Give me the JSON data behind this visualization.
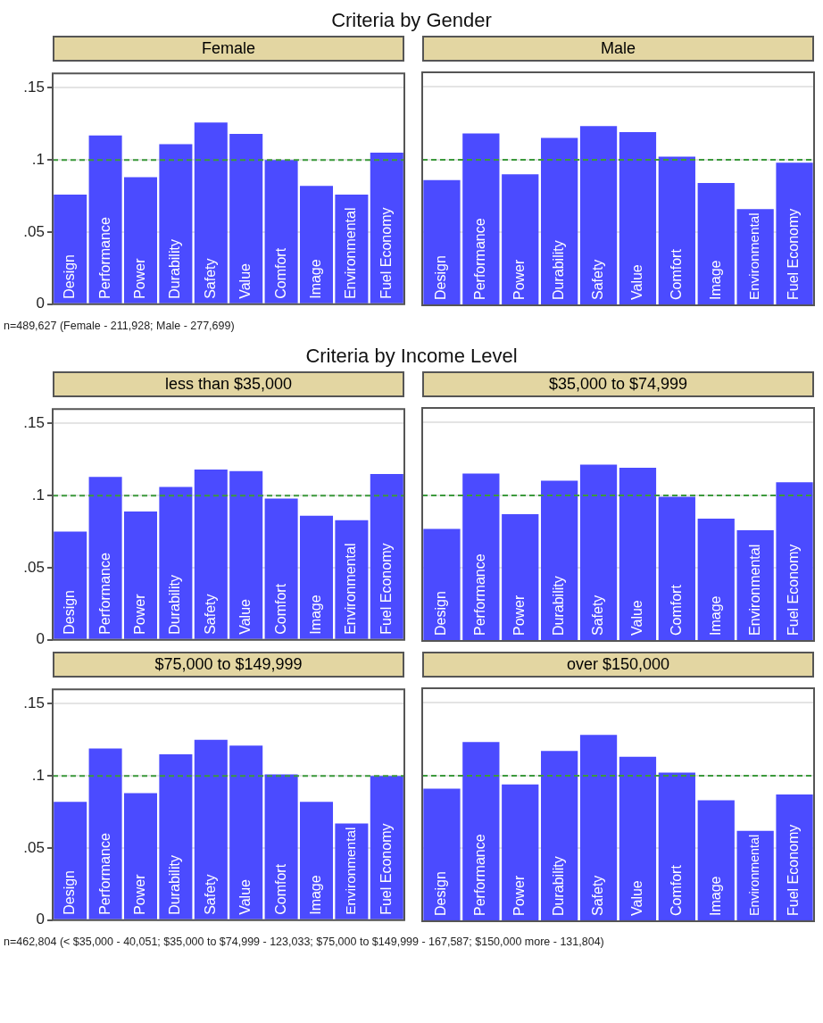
{
  "chart_data": [
    {
      "type": "bar",
      "title": "Criteria by Gender",
      "subtitle": "Female",
      "categories": [
        "Design",
        "Performance",
        "Power",
        "Durability",
        "Safety",
        "Value",
        "Comfort",
        "Image",
        "Environmental",
        "Fuel Economy"
      ],
      "values": [
        0.076,
        0.117,
        0.088,
        0.111,
        0.126,
        0.118,
        0.1,
        0.082,
        0.076,
        0.105
      ],
      "color": "#4b4bff",
      "ylim": [
        0,
        0.16
      ],
      "yticks": [
        {
          "value": 0,
          "label": "0"
        },
        {
          "value": 0.05,
          "label": ".05"
        },
        {
          "value": 0.1,
          "label": ".1"
        },
        {
          "value": 0.15,
          "label": ".15"
        }
      ],
      "grid": "y",
      "ref_lines": [
        {
          "axis": "y",
          "value": 0.1,
          "color": "#3c9a3c",
          "line_style": "dashed"
        }
      ]
    },
    {
      "type": "bar",
      "subtitle": "Male",
      "categories": [
        "Design",
        "Performance",
        "Power",
        "Durability",
        "Safety",
        "Value",
        "Comfort",
        "Image",
        "Environmental",
        "Fuel Economy"
      ],
      "values": [
        0.086,
        0.118,
        0.09,
        0.115,
        0.123,
        0.119,
        0.102,
        0.084,
        0.066,
        0.098
      ],
      "color": "#4b4bff",
      "ylim": [
        0,
        0.16
      ],
      "yticks": [
        0,
        0.05,
        0.1,
        0.15
      ],
      "grid": "y",
      "tick_labels": "x",
      "ref_lines": [
        {
          "axis": "y",
          "value": 0.1,
          "color": "#3c9a3c",
          "line_style": "dashed"
        }
      ],
      "annotations": [
        "n=489,627 (Female - 211,928; Male - 277,699)"
      ]
    },
    {
      "type": "bar",
      "title": "Criteria by Income Level",
      "subtitle": "less than $35,000",
      "categories": [
        "Design",
        "Performance",
        "Power",
        "Durability",
        "Safety",
        "Value",
        "Comfort",
        "Image",
        "Environmental",
        "Fuel Economy"
      ],
      "values": [
        0.075,
        0.113,
        0.089,
        0.106,
        0.118,
        0.117,
        0.098,
        0.086,
        0.083,
        0.115
      ],
      "color": "#4b4bff",
      "ylim": [
        0,
        0.16
      ],
      "yticks": [
        {
          "value": 0,
          "label": "0"
        },
        {
          "value": 0.05,
          "label": ".05"
        },
        {
          "value": 0.1,
          "label": ".1"
        },
        {
          "value": 0.15,
          "label": ".15"
        }
      ],
      "grid": "y",
      "ref_lines": [
        {
          "axis": "y",
          "value": 0.1,
          "color": "#3c9a3c",
          "line_style": "dashed"
        }
      ]
    },
    {
      "type": "bar",
      "subtitle": "$35,000 to $74,999",
      "categories": [
        "Design",
        "Performance",
        "Power",
        "Durability",
        "Safety",
        "Value",
        "Comfort",
        "Image",
        "Environmental",
        "Fuel Economy"
      ],
      "values": [
        0.077,
        0.115,
        0.087,
        0.11,
        0.121,
        0.119,
        0.099,
        0.084,
        0.076,
        0.109
      ],
      "color": "#4b4bff",
      "ylim": [
        0,
        0.16
      ],
      "yticks": [
        0,
        0.05,
        0.1,
        0.15
      ],
      "grid": "y",
      "tick_labels": "x",
      "ref_lines": [
        {
          "axis": "y",
          "value": 0.1,
          "color": "#3c9a3c",
          "line_style": "dashed"
        }
      ]
    },
    {
      "type": "bar",
      "subtitle": "$75,000 to $149,999",
      "categories": [
        "Design",
        "Performance",
        "Power",
        "Durability",
        "Safety",
        "Value",
        "Comfort",
        "Image",
        "Environmental",
        "Fuel Economy"
      ],
      "values": [
        0.082,
        0.119,
        0.088,
        0.115,
        0.125,
        0.121,
        0.101,
        0.082,
        0.067,
        0.1
      ],
      "color": "#4b4bff",
      "ylim": [
        0,
        0.16
      ],
      "yticks": [
        {
          "value": 0,
          "label": "0"
        },
        {
          "value": 0.05,
          "label": ".05"
        },
        {
          "value": 0.1,
          "label": ".1"
        },
        {
          "value": 0.15,
          "label": ".15"
        }
      ],
      "grid": "y",
      "ref_lines": [
        {
          "axis": "y",
          "value": 0.1,
          "color": "#3c9a3c",
          "line_style": "dashed"
        }
      ]
    },
    {
      "type": "bar",
      "subtitle": "over $150,000",
      "categories": [
        "Design",
        "Performance",
        "Power",
        "Durability",
        "Safety",
        "Value",
        "Comfort",
        "Image",
        "Environmental",
        "Fuel Economy"
      ],
      "values": [
        0.091,
        0.123,
        0.094,
        0.117,
        0.128,
        0.113,
        0.102,
        0.083,
        0.062,
        0.087
      ],
      "color": "#4b4bff",
      "ylim": [
        0,
        0.16
      ],
      "yticks": [
        0,
        0.05,
        0.1,
        0.15
      ],
      "grid": "y",
      "tick_labels": "x",
      "ref_lines": [
        {
          "axis": "y",
          "value": 0.1,
          "color": "#3c9a3c",
          "line_style": "dashed"
        }
      ],
      "annotations": [
        "n=462,804 (< $35,000 - 40,051; $35,000 to $74,999 - 123,033; $75,000 to $149,999 - 167,587; $150,000 more - 131,804)"
      ]
    }
  ]
}
